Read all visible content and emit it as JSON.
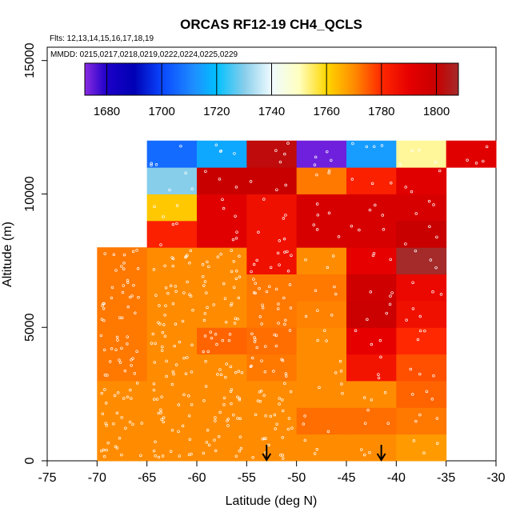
{
  "chart_data": {
    "type": "heatmap",
    "title": "ORCAS RF12-19 CH4_QCLS",
    "flights_label": "Flts: 12,13,14,15,16,17,18,19",
    "dates_label": "MMDD: 0215,0217,0218,0219,0222,0224,0225,0229",
    "xlabel": "Latitude (deg N)",
    "ylabel": "Altitude (m)",
    "xlim": [
      -75,
      -30
    ],
    "ylim": [
      0,
      15500
    ],
    "x_ticks": [
      -75,
      -70,
      -65,
      -60,
      -55,
      -50,
      -45,
      -40,
      -35,
      -30
    ],
    "y_ticks": [
      0,
      5000,
      10000,
      15000
    ],
    "colorbar": {
      "range": [
        1672,
        1808
      ],
      "ticks": [
        1680,
        1700,
        1720,
        1740,
        1760,
        1780,
        1800
      ],
      "stops": [
        {
          "v": 1672,
          "c": "#8a2be2"
        },
        {
          "v": 1680,
          "c": "#1c00c8"
        },
        {
          "v": 1690,
          "c": "#0000b4"
        },
        {
          "v": 1700,
          "c": "#0a46ff"
        },
        {
          "v": 1712,
          "c": "#1e90ff"
        },
        {
          "v": 1720,
          "c": "#00c0ff"
        },
        {
          "v": 1730,
          "c": "#87ceeb"
        },
        {
          "v": 1740,
          "c": "#f0fbff"
        },
        {
          "v": 1750,
          "c": "#ffffc0"
        },
        {
          "v": 1760,
          "c": "#ffd700"
        },
        {
          "v": 1770,
          "c": "#ff8c00"
        },
        {
          "v": 1780,
          "c": "#ff2800"
        },
        {
          "v": 1790,
          "c": "#e60000"
        },
        {
          "v": 1800,
          "c": "#c80000"
        },
        {
          "v": 1808,
          "c": "#a52a2a"
        }
      ]
    },
    "cells": [
      {
        "lat": -70,
        "alt": 0,
        "v": 1770
      },
      {
        "lat": -65,
        "alt": 0,
        "v": 1770
      },
      {
        "lat": -60,
        "alt": 0,
        "v": 1770
      },
      {
        "lat": -55,
        "alt": 0,
        "v": 1770
      },
      {
        "lat": -50,
        "alt": 0,
        "v": 1770
      },
      {
        "lat": -45,
        "alt": 0,
        "v": 1770
      },
      {
        "lat": -40,
        "alt": 0,
        "v": 1768
      },
      {
        "lat": -70,
        "alt": 1000,
        "v": 1770
      },
      {
        "lat": -65,
        "alt": 1000,
        "v": 1770
      },
      {
        "lat": -60,
        "alt": 1000,
        "v": 1770
      },
      {
        "lat": -55,
        "alt": 1000,
        "v": 1770
      },
      {
        "lat": -50,
        "alt": 1000,
        "v": 1773
      },
      {
        "lat": -45,
        "alt": 1000,
        "v": 1773
      },
      {
        "lat": -40,
        "alt": 1000,
        "v": 1772
      },
      {
        "lat": -70,
        "alt": 2000,
        "v": 1770
      },
      {
        "lat": -65,
        "alt": 2000,
        "v": 1770
      },
      {
        "lat": -60,
        "alt": 2000,
        "v": 1770
      },
      {
        "lat": -55,
        "alt": 2000,
        "v": 1770
      },
      {
        "lat": -50,
        "alt": 2000,
        "v": 1770
      },
      {
        "lat": -45,
        "alt": 2000,
        "v": 1770
      },
      {
        "lat": -40,
        "alt": 2000,
        "v": 1774
      },
      {
        "lat": -70,
        "alt": 3000,
        "v": 1772
      },
      {
        "lat": -65,
        "alt": 3000,
        "v": 1770
      },
      {
        "lat": -60,
        "alt": 3000,
        "v": 1770
      },
      {
        "lat": -55,
        "alt": 3000,
        "v": 1772
      },
      {
        "lat": -50,
        "alt": 3000,
        "v": 1770
      },
      {
        "lat": -45,
        "alt": 3000,
        "v": 1785
      },
      {
        "lat": -40,
        "alt": 3000,
        "v": 1776
      },
      {
        "lat": -70,
        "alt": 4000,
        "v": 1772
      },
      {
        "lat": -65,
        "alt": 4000,
        "v": 1770
      },
      {
        "lat": -60,
        "alt": 4000,
        "v": 1774
      },
      {
        "lat": -55,
        "alt": 4000,
        "v": 1773
      },
      {
        "lat": -50,
        "alt": 4000,
        "v": 1770
      },
      {
        "lat": -45,
        "alt": 4000,
        "v": 1790
      },
      {
        "lat": -40,
        "alt": 4000,
        "v": 1780
      },
      {
        "lat": -70,
        "alt": 5000,
        "v": 1772
      },
      {
        "lat": -65,
        "alt": 5000,
        "v": 1770
      },
      {
        "lat": -60,
        "alt": 5000,
        "v": 1770
      },
      {
        "lat": -55,
        "alt": 5000,
        "v": 1772
      },
      {
        "lat": -50,
        "alt": 5000,
        "v": 1771
      },
      {
        "lat": -45,
        "alt": 5000,
        "v": 1799
      },
      {
        "lat": -40,
        "alt": 5000,
        "v": 1786
      },
      {
        "lat": -70,
        "alt": 6000,
        "v": 1772
      },
      {
        "lat": -65,
        "alt": 6000,
        "v": 1770
      },
      {
        "lat": -60,
        "alt": 6000,
        "v": 1770
      },
      {
        "lat": -55,
        "alt": 6000,
        "v": 1772
      },
      {
        "lat": -50,
        "alt": 6000,
        "v": 1772
      },
      {
        "lat": -45,
        "alt": 6000,
        "v": 1798
      },
      {
        "lat": -40,
        "alt": 6000,
        "v": 1788
      },
      {
        "lat": -70,
        "alt": 7000,
        "v": 1772
      },
      {
        "lat": -65,
        "alt": 7000,
        "v": 1770
      },
      {
        "lat": -60,
        "alt": 7000,
        "v": 1770
      },
      {
        "lat": -55,
        "alt": 7000,
        "v": 1786
      },
      {
        "lat": -50,
        "alt": 7000,
        "v": 1770
      },
      {
        "lat": -45,
        "alt": 7000,
        "v": 1790
      },
      {
        "lat": -40,
        "alt": 7000,
        "v": 1808
      },
      {
        "lat": -65,
        "alt": 8000,
        "v": 1782
      },
      {
        "lat": -60,
        "alt": 8000,
        "v": 1792
      },
      {
        "lat": -55,
        "alt": 8000,
        "v": 1786
      },
      {
        "lat": -50,
        "alt": 8000,
        "v": 1795
      },
      {
        "lat": -45,
        "alt": 8000,
        "v": 1795
      },
      {
        "lat": -40,
        "alt": 8000,
        "v": 1800
      },
      {
        "lat": -65,
        "alt": 9000,
        "v": 1762
      },
      {
        "lat": -60,
        "alt": 9000,
        "v": 1792
      },
      {
        "lat": -55,
        "alt": 9000,
        "v": 1786
      },
      {
        "lat": -50,
        "alt": 9000,
        "v": 1795
      },
      {
        "lat": -45,
        "alt": 9000,
        "v": 1795
      },
      {
        "lat": -40,
        "alt": 9000,
        "v": 1795
      },
      {
        "lat": -65,
        "alt": 10000,
        "v": 1730
      },
      {
        "lat": -60,
        "alt": 10000,
        "v": 1800
      },
      {
        "lat": -55,
        "alt": 10000,
        "v": 1800
      },
      {
        "lat": -50,
        "alt": 10000,
        "v": 1772
      },
      {
        "lat": -45,
        "alt": 10000,
        "v": 1782
      },
      {
        "lat": -40,
        "alt": 10000,
        "v": 1792
      },
      {
        "lat": -65,
        "alt": 11000,
        "v": 1706
      },
      {
        "lat": -60,
        "alt": 11000,
        "v": 1716
      },
      {
        "lat": -55,
        "alt": 11000,
        "v": 1802
      },
      {
        "lat": -50,
        "alt": 11000,
        "v": 1674
      },
      {
        "lat": -45,
        "alt": 11000,
        "v": 1714
      },
      {
        "lat": -40,
        "alt": 11000,
        "v": 1752
      },
      {
        "lat": -35,
        "alt": 11000,
        "v": 1792
      }
    ],
    "samples_seed": 1219,
    "arrow_lats": [
      -53,
      -41.5
    ]
  }
}
